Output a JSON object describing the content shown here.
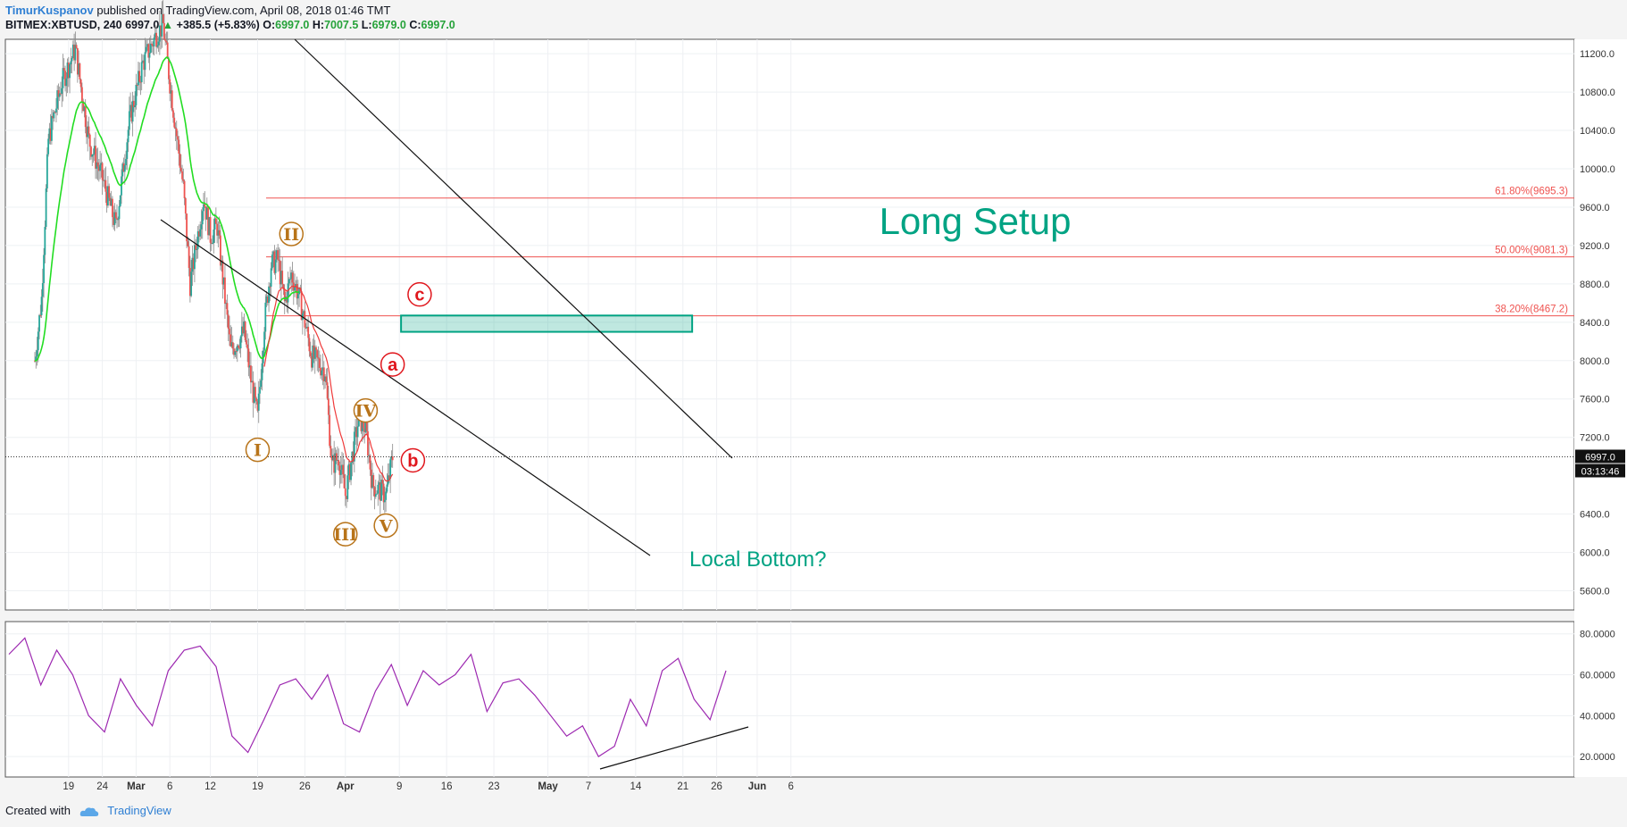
{
  "header": {
    "author": "TimurKuspanov",
    "published": "published on TradingView.com, April 08, 2018 01:46 TMT",
    "symbol": "BITMEX:XBTUSD, 240",
    "last": "6997.0",
    "change": "+385.5 (+5.83%)",
    "o_label": "O:",
    "o": "6997.0",
    "h_label": "H:",
    "h": "7007.5",
    "l_label": "L:",
    "l": "6979.0",
    "c_label": "C:",
    "c": "6997.0"
  },
  "footer": {
    "created": "Created with",
    "brand": "TradingView"
  },
  "colors": {
    "up": "#26a69a",
    "down": "#ef5350",
    "ema_fast": "#22dd22",
    "ema_slow": "#ef3a3a",
    "rsi": "#9c27b0",
    "fib": "#ef5350",
    "setup": "#00a383",
    "wave": "#b8741a",
    "abc": "#e0161c"
  },
  "chart_data": {
    "type": "candlestick",
    "price_ticks": [
      "11200.0",
      "10800.0",
      "10400.0",
      "10000.0",
      "9600.0",
      "9200.0",
      "8800.0",
      "8400.0",
      "8000.0",
      "7600.0",
      "7200.0",
      "6400.0",
      "6000.0",
      "5600.0"
    ],
    "rsi_ticks": [
      "80.0000",
      "60.0000",
      "40.0000",
      "20.0000"
    ],
    "x_ticks": [
      "19",
      "24",
      "Mar",
      "6",
      "12",
      "19",
      "26",
      "Apr",
      "9",
      "16",
      "23",
      "May",
      "7",
      "14",
      "21",
      "26",
      "Jun",
      "6"
    ],
    "price_range": [
      5400,
      11350
    ],
    "last_price": {
      "value": 6997.0,
      "label": "6997.0",
      "countdown": "03:13:46"
    },
    "fib_levels": [
      {
        "level": 9695.3,
        "label": "61.80%(9695.3)"
      },
      {
        "level": 9081.3,
        "label": "50.00%(9081.3)"
      },
      {
        "level": 8467.2,
        "label": "38.20%(8467.2)"
      }
    ],
    "setup_zone": {
      "low": 8300,
      "high": 8470,
      "label": "Long Setup"
    },
    "annotations": [
      "Local Bottom?"
    ],
    "wave_labels": [
      {
        "label": "I",
        "date": "Mar 19",
        "price": 7070
      },
      {
        "label": "II",
        "date": "Mar 24",
        "price": 9320
      },
      {
        "label": "III",
        "date": "Apr 1",
        "price": 6190
      },
      {
        "label": "IV",
        "date": "Apr 4",
        "price": 7480
      },
      {
        "label": "V",
        "date": "Apr 7",
        "price": 6280
      }
    ],
    "abc_labels": [
      {
        "label": "a",
        "date": "Apr 8",
        "price": 7960
      },
      {
        "label": "b",
        "date": "Apr 11",
        "price": 6960
      },
      {
        "label": "c",
        "date": "Apr 12",
        "price": 8690
      }
    ],
    "price_path": [
      [
        "Feb 14",
        8000
      ],
      [
        "Feb 15",
        8650
      ],
      [
        "Feb 16",
        10300
      ],
      [
        "Feb 18",
        10900
      ],
      [
        "Feb 20",
        11250
      ],
      [
        "Feb 22",
        10300
      ],
      [
        "Feb 24",
        9900
      ],
      [
        "Feb 26",
        9400
      ],
      [
        "Feb 28",
        10500
      ],
      [
        "Mar 2",
        11100
      ],
      [
        "Mar 4",
        11400
      ],
      [
        "Mar 5",
        11500
      ],
      [
        "Mar 6",
        10900
      ],
      [
        "Mar 8",
        9800
      ],
      [
        "Mar 9",
        8800
      ],
      [
        "Mar 11",
        9700
      ],
      [
        "Mar 12",
        9300
      ],
      [
        "Mar 13",
        9400
      ],
      [
        "Mar 15",
        8100
      ],
      [
        "Mar 17",
        8300
      ],
      [
        "Mar 18",
        7800
      ],
      [
        "Mar 19",
        7400
      ],
      [
        "Mar 20",
        8400
      ],
      [
        "Mar 21",
        9000
      ],
      [
        "Mar 22",
        9050
      ],
      [
        "Mar 23",
        8600
      ],
      [
        "Mar 24",
        8900
      ],
      [
        "Mar 25",
        8700
      ],
      [
        "Mar 26",
        8400
      ],
      [
        "Mar 27",
        8050
      ],
      [
        "Mar 29",
        7900
      ],
      [
        "Mar 30",
        6900
      ],
      [
        "Mar 31",
        7000
      ],
      [
        "Apr 1",
        6600
      ],
      [
        "Apr 2",
        7000
      ],
      [
        "Apr 3",
        7400
      ],
      [
        "Apr 4",
        7300
      ],
      [
        "Apr 5",
        6700
      ],
      [
        "Apr 6",
        6650
      ],
      [
        "Apr 7",
        6600
      ],
      [
        "Apr 8",
        6997
      ]
    ],
    "rsi": [
      70,
      78,
      55,
      72,
      60,
      40,
      32,
      58,
      45,
      35,
      62,
      72,
      74,
      64,
      30,
      22,
      38,
      55,
      58,
      48,
      60,
      36,
      32,
      52,
      65,
      45,
      62,
      55,
      60,
      70,
      42,
      56,
      58,
      50,
      40,
      30,
      35,
      20,
      25,
      48,
      35,
      62,
      68,
      48,
      38,
      62
    ],
    "rsi_range": [
      10,
      86
    ]
  }
}
